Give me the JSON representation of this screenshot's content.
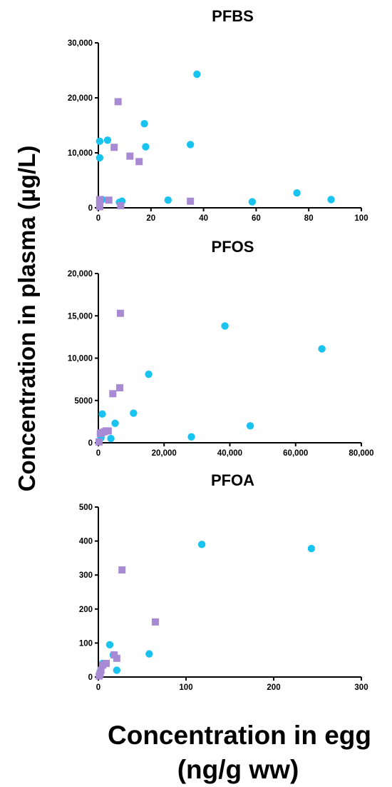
{
  "figure": {
    "ylabel": "Concentration in plasma  (µg/L)",
    "xlabel_line1": "Concentration in egg",
    "xlabel_line2": "(ng/g ww)"
  },
  "colors": {
    "series_a": "#19c3f0",
    "series_b": "#a88ad4",
    "axis": "#000000"
  },
  "chart_data": [
    {
      "type": "scatter",
      "title": "PFBS",
      "xlim": [
        0,
        100
      ],
      "ylim": [
        0,
        30000
      ],
      "xticks": [
        0,
        20,
        40,
        60,
        80,
        100
      ],
      "xtick_labels": [
        "0",
        "20",
        "40",
        "60",
        "80",
        "100"
      ],
      "yticks": [
        0,
        10000,
        20000,
        30000
      ],
      "ytick_labels": [
        "0",
        "10,000",
        "20,000",
        "30,000"
      ],
      "series": [
        {
          "marker": "circle",
          "x": [
            0.5,
            0.5,
            3.5,
            1.5,
            8,
            9,
            17.5,
            18,
            26.5,
            35,
            37.5,
            58.5,
            75.5,
            88.5
          ],
          "y": [
            12100,
            9100,
            12300,
            1500,
            1000,
            1200,
            15300,
            11100,
            1400,
            11500,
            24300,
            1100,
            2700,
            1500
          ]
        },
        {
          "marker": "square",
          "x": [
            0.5,
            0.5,
            0.5,
            4,
            6,
            7.5,
            8.5,
            12,
            15.5,
            35
          ],
          "y": [
            1500,
            800,
            200,
            1400,
            11000,
            19300,
            400,
            9400,
            8400,
            1200
          ]
        }
      ]
    },
    {
      "type": "scatter",
      "title": "PFOS",
      "xlim": [
        0,
        80000
      ],
      "ylim": [
        0,
        20000
      ],
      "xticks": [
        0,
        20000,
        40000,
        60000,
        80000
      ],
      "xtick_labels": [
        "0",
        "20,000",
        "40,000",
        "60,000",
        "80,000"
      ],
      "yticks": [
        0,
        5000,
        10000,
        15000,
        20000
      ],
      "ytick_labels": [
        "0",
        "5000",
        "10,000",
        "15,000",
        "20,000"
      ],
      "series": [
        {
          "marker": "circle",
          "x": [
            1200,
            800,
            3800,
            5100,
            10700,
            15300,
            28300,
            38500,
            46200,
            68000
          ],
          "y": [
            3400,
            600,
            500,
            2300,
            3500,
            8100,
            700,
            13800,
            2000,
            11100
          ]
        },
        {
          "marker": "square",
          "x": [
            200,
            600,
            1000,
            1800,
            2400,
            3000,
            4400,
            6500,
            6700
          ],
          "y": [
            100,
            1100,
            1200,
            1300,
            1400,
            1400,
            5800,
            6500,
            15300
          ]
        }
      ]
    },
    {
      "type": "scatter",
      "title": "PFOA",
      "xlim": [
        0,
        300
      ],
      "ylim": [
        0,
        500
      ],
      "xticks": [
        0,
        100,
        200,
        300
      ],
      "xtick_labels": [
        "0",
        "100",
        "200",
        "300"
      ],
      "yticks": [
        0,
        100,
        200,
        300,
        400,
        500
      ],
      "ytick_labels": [
        "0",
        "100",
        "200",
        "300",
        "400",
        "500"
      ],
      "series": [
        {
          "marker": "circle",
          "x": [
            2,
            5,
            13,
            17,
            21,
            58,
            118,
            243
          ],
          "y": [
            15,
            40,
            95,
            65,
            20,
            68,
            390,
            378
          ]
        },
        {
          "marker": "square",
          "x": [
            1,
            2,
            3,
            5,
            9,
            18,
            21,
            27,
            65
          ],
          "y": [
            3,
            10,
            20,
            35,
            40,
            65,
            55,
            315,
            162
          ]
        }
      ]
    }
  ]
}
